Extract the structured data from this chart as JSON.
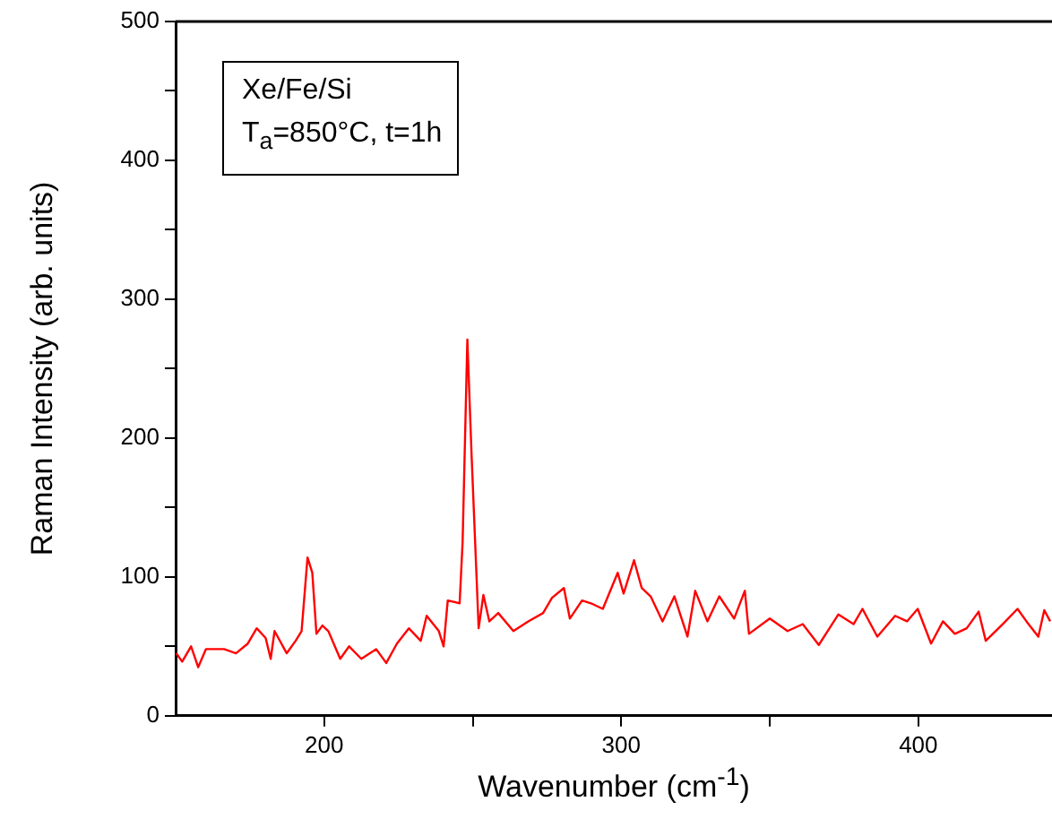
{
  "chart_data": {
    "type": "line",
    "xlabel": "Wavenumber (cm$^{-1}$)",
    "ylabel": "Raman Intensity (arb. units)",
    "annotations": [
      "Xe/Fe/Si",
      "T$_{a}$=850°C, t=1h"
    ],
    "xlim": [
      150,
      445
    ],
    "ylim": [
      0,
      500
    ],
    "xticks": [
      200,
      {
        "value": 250,
        "label": null
      },
      300,
      {
        "value": 350,
        "label": null
      },
      400
    ],
    "yticks": [
      0,
      {
        "value": 50,
        "label": null
      },
      100,
      {
        "value": 150,
        "label": null
      },
      200,
      {
        "value": 250,
        "label": null
      },
      300,
      {
        "value": 350,
        "label": null
      },
      400,
      {
        "value": 450,
        "label": null
      },
      500
    ],
    "grid": false,
    "legend": false,
    "marker": "none",
    "line_style": "solid",
    "series": [
      {
        "color": "#ff0000",
        "x": [
          150.2,
          152.2,
          155.2,
          157.6,
          160.2,
          166.3,
          170.3,
          174.3,
          177.3,
          180.3,
          182,
          183.3,
          187.4,
          190.4,
          192.4,
          194.4,
          196,
          197.4,
          199.4,
          201.4,
          205.4,
          208.4,
          212.5,
          217.5,
          220.9,
          224.5,
          228.5,
          232.5,
          234.5,
          238.6,
          240.2,
          241.6,
          245.6,
          246.6,
          248.2,
          249.6,
          252,
          253.6,
          255.6,
          258.6,
          263.7,
          268.7,
          273.7,
          276.7,
          280.7,
          282.7,
          286.8,
          289.8,
          293.8,
          298.8,
          300.8,
          304.3,
          306.9,
          309.9,
          313.9,
          317.9,
          322.3,
          324.9,
          329,
          333,
          338,
          341.6,
          343,
          350,
          356,
          361.1,
          366.5,
          370.1,
          373.1,
          378.2,
          381.2,
          386.2,
          392.2,
          396.2,
          399.8,
          404.3,
          408.3,
          412.3,
          416.3,
          420.3,
          422.7,
          428.4,
          433.4,
          436.4,
          440.4,
          442.4,
          444.4
        ],
        "values": [
          45,
          39,
          50,
          35,
          48,
          48,
          45,
          52,
          63,
          56,
          41,
          61,
          45,
          54,
          61,
          114,
          103,
          59,
          65,
          61,
          41,
          50,
          41,
          48,
          38,
          52,
          63,
          54,
          72,
          61,
          50,
          83,
          81,
          125,
          271,
          189,
          63,
          87,
          68,
          74,
          61,
          68,
          74,
          85,
          92,
          70,
          83,
          81,
          77,
          103,
          88,
          112,
          92,
          86,
          68,
          86,
          57,
          90,
          68,
          86,
          70,
          90,
          59,
          70,
          61,
          66,
          51,
          63,
          73,
          66,
          77,
          57,
          72,
          68,
          77,
          52,
          68,
          59,
          63,
          75,
          54,
          66,
          77,
          68,
          57,
          76,
          68
        ]
      }
    ]
  }
}
